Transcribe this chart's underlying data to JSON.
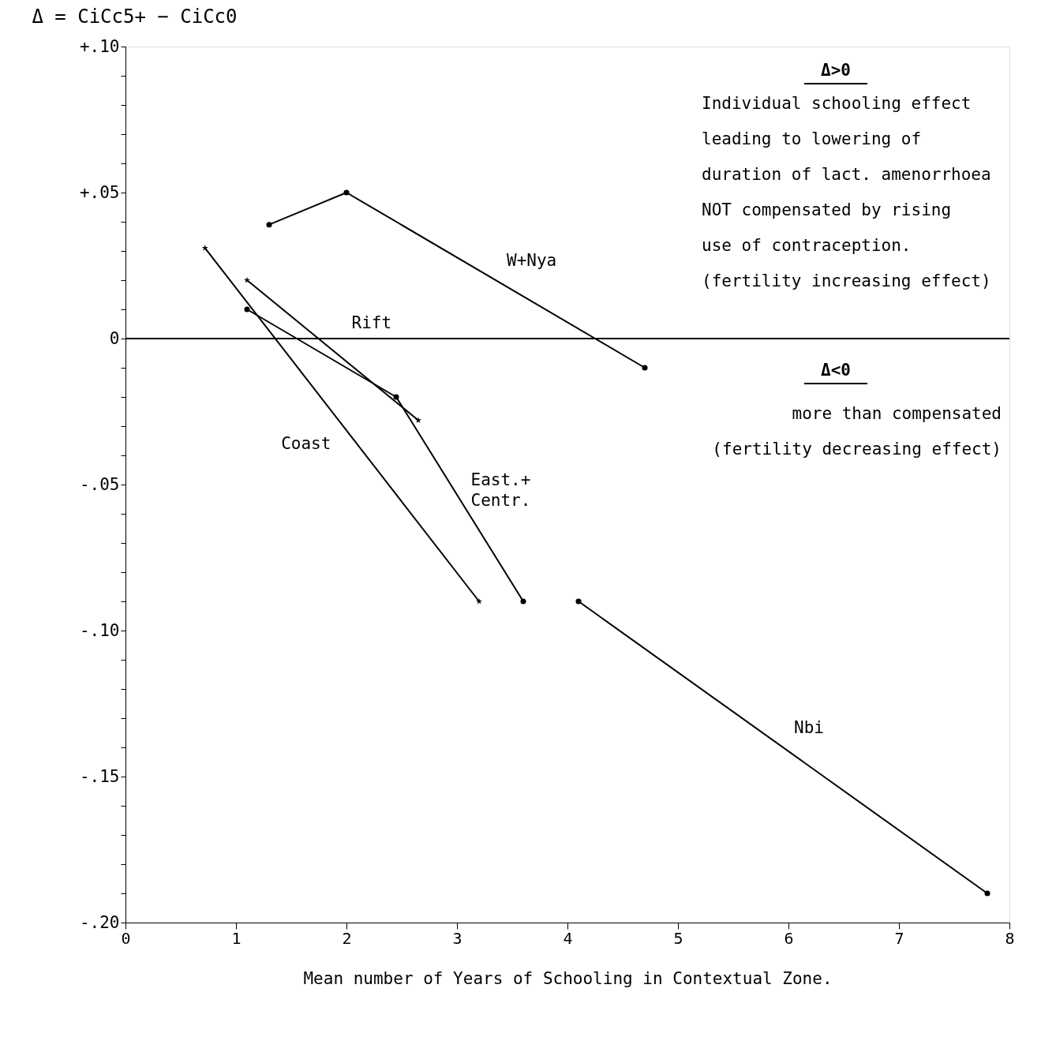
{
  "chart_data": {
    "type": "line",
    "title": "Δ = CiCc5+ − CiCc0",
    "xlabel": "Mean number of Years of Schooling in Contextual Zone.",
    "series": [
      {
        "name": "W+Nya",
        "color": "#000000",
        "marker": "circle",
        "x": [
          1.3,
          2.0,
          4.7
        ],
        "values": [
          0.039,
          0.05,
          -0.01
        ]
      },
      {
        "name": "Rift",
        "color": "#000000",
        "marker": "star",
        "x": [
          1.1,
          2.65
        ],
        "values": [
          0.02,
          -0.028
        ]
      },
      {
        "name": "Coast",
        "color": "#000000",
        "marker": "star",
        "x": [
          0.72,
          3.2
        ],
        "values": [
          0.031,
          -0.09
        ]
      },
      {
        "name": "East.+\n  Centr.",
        "color": "#000000",
        "marker": "circle",
        "x": [
          1.1,
          2.45,
          3.6
        ],
        "values": [
          0.01,
          -0.02,
          -0.09
        ]
      },
      {
        "name": "Nbi",
        "color": "#000000",
        "marker": "circle",
        "x": [
          4.1,
          7.8
        ],
        "values": [
          -0.09,
          -0.19
        ]
      }
    ],
    "annotations": [
      "Δ>0",
      "Individual schooling effect\nleading to lowering of\nduration of lact. amenorrhoea\nNOT compensated by rising\nuse of contraception.\n(fertility increasing effect)",
      "Δ<0",
      "more than compensated\n(fertility decreasing effect)"
    ],
    "ref_lines": [
      {
        "axis": "y",
        "value": 0,
        "color": "#000000"
      }
    ],
    "xlim": [
      0,
      8
    ],
    "xticks": [
      0,
      1,
      2,
      3,
      4,
      5,
      6,
      7,
      8
    ],
    "ylim": [
      -0.2,
      0.1
    ],
    "yticks": [
      {
        "value": 0.1,
        "label": "+.10"
      },
      {
        "value": 0.05,
        "label": "+.05"
      },
      0,
      {
        "value": -0.05,
        "label": "-.05"
      },
      {
        "value": -0.1,
        "label": "-.10"
      },
      {
        "value": -0.15,
        "label": "-.15"
      },
      {
        "value": -0.2,
        "label": "-.20"
      },
      {
        "value": 0.09,
        "label": null
      },
      {
        "value": 0.08,
        "label": null
      },
      {
        "value": 0.07,
        "label": null
      },
      {
        "value": 0.06,
        "label": null
      },
      {
        "value": 0.04,
        "label": null
      },
      {
        "value": 0.03,
        "label": null
      },
      {
        "value": 0.02,
        "label": null
      },
      {
        "value": 0.01,
        "label": null
      },
      {
        "value": -0.01,
        "label": null
      },
      {
        "value": -0.02,
        "label": null
      },
      {
        "value": -0.03,
        "label": null
      },
      {
        "value": -0.04,
        "label": null
      },
      {
        "value": -0.06,
        "label": null
      },
      {
        "value": -0.07,
        "label": null
      },
      {
        "value": -0.08,
        "label": null
      },
      {
        "value": -0.09,
        "label": null
      },
      {
        "value": -0.11,
        "label": null
      },
      {
        "value": -0.12,
        "label": null
      },
      {
        "value": -0.13,
        "label": null
      },
      {
        "value": -0.14,
        "label": null
      },
      {
        "value": -0.16,
        "label": null
      },
      {
        "value": -0.17,
        "label": null
      },
      {
        "value": -0.18,
        "label": null
      },
      {
        "value": -0.19,
        "label": null
      }
    ],
    "grid": false
  }
}
